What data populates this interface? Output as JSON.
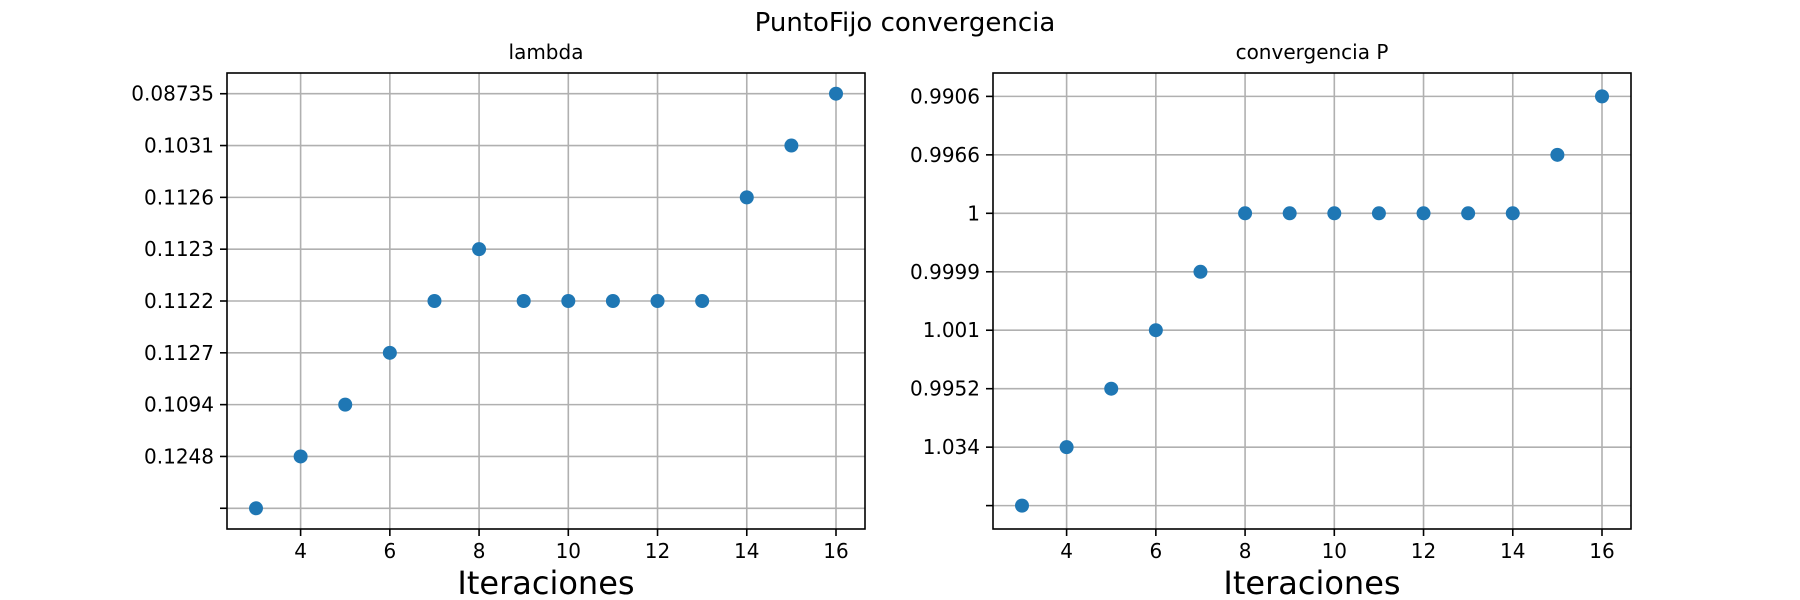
{
  "figure": {
    "suptitle": "PuntoFijo convergencia"
  },
  "chart_data": [
    {
      "type": "scatter",
      "title": "lambda",
      "xlabel": "Iteraciones",
      "ylabel": "",
      "x_ticks": [
        4,
        6,
        8,
        10,
        12,
        14,
        16
      ],
      "y_axis": "categorical",
      "y_tick_labels": [
        "",
        "0.1248",
        "0.1094",
        "0.1127",
        "0.1122",
        "0.1123",
        "0.1126",
        "0.1031",
        "0.08735"
      ],
      "grid": true,
      "color": "#1f77b4",
      "points": [
        {
          "x": 3,
          "y": ""
        },
        {
          "x": 4,
          "y": "0.1248"
        },
        {
          "x": 5,
          "y": "0.1094"
        },
        {
          "x": 6,
          "y": "0.1127"
        },
        {
          "x": 7,
          "y": "0.1122"
        },
        {
          "x": 8,
          "y": "0.1123"
        },
        {
          "x": 9,
          "y": "0.1122"
        },
        {
          "x": 10,
          "y": "0.1122"
        },
        {
          "x": 11,
          "y": "0.1122"
        },
        {
          "x": 12,
          "y": "0.1122"
        },
        {
          "x": 13,
          "y": "0.1122"
        },
        {
          "x": 14,
          "y": "0.1126"
        },
        {
          "x": 15,
          "y": "0.1031"
        },
        {
          "x": 16,
          "y": "0.08735"
        }
      ]
    },
    {
      "type": "scatter",
      "title": "convergencia P",
      "xlabel": "Iteraciones",
      "ylabel": "",
      "x_ticks": [
        4,
        6,
        8,
        10,
        12,
        14,
        16
      ],
      "y_axis": "categorical",
      "y_tick_labels": [
        "",
        "1.034",
        "0.9952",
        "1.001",
        "0.9999",
        "1",
        "0.9966",
        "0.9906"
      ],
      "grid": true,
      "color": "#1f77b4",
      "points": [
        {
          "x": 3,
          "y": ""
        },
        {
          "x": 4,
          "y": "1.034"
        },
        {
          "x": 5,
          "y": "0.9952"
        },
        {
          "x": 6,
          "y": "1.001"
        },
        {
          "x": 7,
          "y": "0.9999"
        },
        {
          "x": 8,
          "y": "1"
        },
        {
          "x": 9,
          "y": "1"
        },
        {
          "x": 10,
          "y": "1"
        },
        {
          "x": 11,
          "y": "1"
        },
        {
          "x": 12,
          "y": "1"
        },
        {
          "x": 13,
          "y": "1"
        },
        {
          "x": 14,
          "y": "1"
        },
        {
          "x": 15,
          "y": "0.9966"
        },
        {
          "x": 16,
          "y": "0.9906"
        }
      ]
    }
  ]
}
